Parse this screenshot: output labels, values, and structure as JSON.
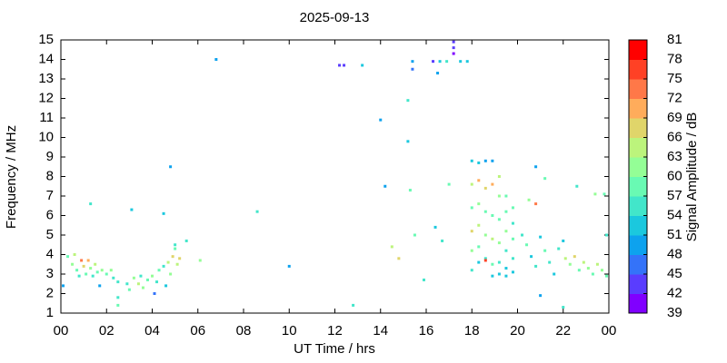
{
  "chart_data": {
    "type": "scatter",
    "title": "2025-09-13",
    "x_label": "UT Time / hrs",
    "y_label": "Frequency / MHz",
    "colorbar_label": "Signal Amplitude / dB",
    "xlim": [
      0,
      24
    ],
    "xticks": [
      {
        "value": 0,
        "label": "00"
      },
      {
        "value": 2,
        "label": "02"
      },
      {
        "value": 4,
        "label": "04"
      },
      {
        "value": 6,
        "label": "06"
      },
      {
        "value": 8,
        "label": "08"
      },
      10,
      12,
      14,
      16,
      18,
      20,
      22,
      {
        "value": 24,
        "label": "00"
      }
    ],
    "ylim": [
      1,
      15
    ],
    "yticks": [
      1,
      2,
      3,
      4,
      5,
      6,
      7,
      8,
      9,
      10,
      11,
      12,
      13,
      14,
      15
    ],
    "clim": [
      39,
      81
    ],
    "cticks": [
      39,
      42,
      45,
      48,
      51,
      54,
      57,
      60,
      63,
      66,
      69,
      72,
      75,
      78,
      81
    ],
    "colormap": [
      "#8000ff",
      "#5a3dfe",
      "#3473f9",
      "#0da2ee",
      "#1bc8de",
      "#42e6ca",
      "#69fab3",
      "#94fe96",
      "#bcf47c",
      "#e0d56a",
      "#ffac5b",
      "#ff7848",
      "#ff4125",
      "#ff0000"
    ],
    "x": [
      0.1,
      0.3,
      0.5,
      0.6,
      0.7,
      0.8,
      0.9,
      1.0,
      1.1,
      1.2,
      1.3,
      1.4,
      1.5,
      1.6,
      1.7,
      1.8,
      2.0,
      2.2,
      2.3,
      2.5,
      2.5,
      2.5,
      2.9,
      3.0,
      3.2,
      3.4,
      3.5,
      3.6,
      3.8,
      4.0,
      4.1,
      4.2,
      4.3,
      4.5,
      4.6,
      4.7,
      4.8,
      4.9,
      5.0,
      5.1,
      5.2,
      5.0,
      5.5,
      6.1,
      1.3,
      3.1,
      4.5,
      4.8,
      6.8,
      8.6,
      10.0,
      12.2,
      12.4,
      12.8,
      13.2,
      14.0,
      14.2,
      14.5,
      14.8,
      15.2,
      15.2,
      15.3,
      15.4,
      15.4,
      15.5,
      15.9,
      16.3,
      16.4,
      16.5,
      16.6,
      16.7,
      16.9,
      17.0,
      17.2,
      17.2,
      17.2,
      17.5,
      17.8,
      18.0,
      18.0,
      18.0,
      18.0,
      18.0,
      18.0,
      18.3,
      18.3,
      18.3,
      18.3,
      18.3,
      18.3,
      18.6,
      18.6,
      18.6,
      18.6,
      18.6,
      18.6,
      18.9,
      18.9,
      18.9,
      18.9,
      18.9,
      18.9,
      19.2,
      19.2,
      19.2,
      19.2,
      19.2,
      19.2,
      19.5,
      19.5,
      19.5,
      19.5,
      19.5,
      19.5,
      19.8,
      19.8,
      19.8,
      19.8,
      19.8,
      20.2,
      20.4,
      20.6,
      20.8,
      20.8,
      21.0,
      21.2,
      21.4,
      21.6,
      21.8,
      22.0,
      22.1,
      22.3,
      22.5,
      22.7,
      22.9,
      23.1,
      23.3,
      23.5,
      23.7,
      23.9,
      23.9,
      22.6,
      23.4,
      23.8,
      21.0,
      22.0,
      20.5,
      20.8,
      21.2
    ],
    "values": [
      2.4,
      3.9,
      3.5,
      4.0,
      3.2,
      2.9,
      3.7,
      3.4,
      3.0,
      3.7,
      3.3,
      2.9,
      3.5,
      3.1,
      2.4,
      3.2,
      3.0,
      3.2,
      2.8,
      2.6,
      1.8,
      1.4,
      2.5,
      2.2,
      2.8,
      2.5,
      2.9,
      2.3,
      2.7,
      2.9,
      2.0,
      2.6,
      3.2,
      3.4,
      2.4,
      3.6,
      3.0,
      3.9,
      4.3,
      3.5,
      3.8,
      4.5,
      4.7,
      3.7,
      6.6,
      6.3,
      6.1,
      8.5,
      14.0,
      6.2,
      3.4,
      13.7,
      13.7,
      1.4,
      13.7,
      10.9,
      7.5,
      4.4,
      3.8,
      11.9,
      9.8,
      7.3,
      13.9,
      13.5,
      5.0,
      2.7,
      13.9,
      5.4,
      13.3,
      13.9,
      4.7,
      13.9,
      7.6,
      14.9,
      14.6,
      14.3,
      13.9,
      13.9,
      8.8,
      7.6,
      6.4,
      5.2,
      4.2,
      3.2,
      8.7,
      7.8,
      6.6,
      5.5,
      4.4,
      3.6,
      8.8,
      7.4,
      6.2,
      5.0,
      3.8,
      3.7,
      8.8,
      7.6,
      6.0,
      4.8,
      3.5,
      2.9,
      8.0,
      7.0,
      5.8,
      4.6,
      3.6,
      3.0,
      7.0,
      6.2,
      5.2,
      4.2,
      3.3,
      2.9,
      6.4,
      5.6,
      4.8,
      3.8,
      3.1,
      5.0,
      4.5,
      3.9,
      3.4,
      8.5,
      4.9,
      4.2,
      3.6,
      3.0,
      4.3,
      4.7,
      3.8,
      3.5,
      3.9,
      3.2,
      3.6,
      3.3,
      3.0,
      3.5,
      3.2,
      2.9,
      5.0,
      7.5,
      7.1,
      7.1,
      1.9,
      1.3,
      6.8,
      6.6,
      7.9
    ],
    "amplitude": [
      50,
      57,
      60,
      63,
      57,
      54,
      72,
      66,
      57,
      69,
      60,
      54,
      63,
      57,
      50,
      60,
      57,
      60,
      54,
      54,
      54,
      57,
      54,
      57,
      60,
      63,
      54,
      60,
      57,
      60,
      45,
      54,
      57,
      54,
      51,
      63,
      60,
      66,
      57,
      63,
      66,
      54,
      54,
      60,
      54,
      51,
      51,
      48,
      48,
      54,
      48,
      42,
      42,
      54,
      51,
      48,
      48,
      63,
      66,
      54,
      51,
      57,
      48,
      45,
      57,
      54,
      42,
      51,
      48,
      51,
      54,
      54,
      57,
      42,
      42,
      39,
      51,
      51,
      51,
      63,
      57,
      66,
      60,
      54,
      51,
      69,
      60,
      63,
      57,
      51,
      48,
      66,
      57,
      60,
      54,
      75,
      48,
      69,
      57,
      63,
      57,
      51,
      63,
      60,
      57,
      60,
      54,
      51,
      57,
      57,
      60,
      54,
      51,
      51,
      57,
      54,
      57,
      54,
      51,
      54,
      57,
      51,
      54,
      48,
      51,
      57,
      54,
      51,
      54,
      51,
      63,
      60,
      66,
      57,
      63,
      60,
      57,
      63,
      60,
      57,
      54,
      54,
      60,
      57,
      48,
      54,
      60,
      72,
      57
    ]
  }
}
